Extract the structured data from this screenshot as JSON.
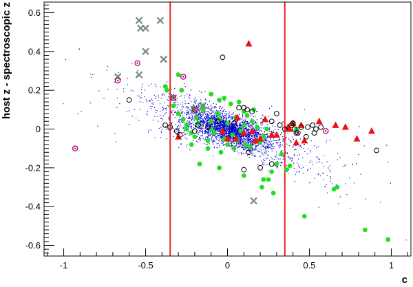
{
  "chart_data": {
    "type": "scatter",
    "title": "",
    "xlabel": "c",
    "ylabel": "host z - spectroscopic z",
    "xlim": [
      -1.12,
      1.12
    ],
    "ylim": [
      -0.655,
      0.655
    ],
    "xticks": [
      -1,
      -0.5,
      0,
      0.5,
      1
    ],
    "xtick_labels": [
      "-1",
      "-0.5",
      "0",
      "0.5",
      "1"
    ],
    "yticks": [
      -0.6,
      -0.4,
      -0.2,
      0,
      0.2,
      0.4,
      0.6
    ],
    "ytick_labels": [
      "-0.6",
      "-0.4",
      "-0.2",
      "0",
      "0.2",
      "0.4",
      "0.6"
    ],
    "grid": false,
    "vertical_lines": [
      -0.35,
      0.35
    ],
    "colors": {
      "background_dots": "#0000cc",
      "green": "#22dd22",
      "red": "#ee1111",
      "open_circle": "#000000",
      "cross": "#778877",
      "magenta_ring": "#aa0077",
      "cut_line": "#ee2222"
    },
    "series": [
      {
        "marker": "green-circle",
        "x": [
          -0.3,
          -0.28,
          -0.38,
          -0.33,
          -0.3,
          -0.27,
          -0.25,
          -0.22,
          -0.19,
          -0.15,
          -0.1,
          -0.05,
          0.0,
          0.05,
          0.1,
          0.15,
          -0.2,
          -0.12,
          -0.08,
          -0.02,
          0.03,
          0.08,
          0.12,
          0.18,
          0.22,
          -0.25,
          -0.18,
          -0.1,
          -0.06,
          0.0,
          0.06,
          0.14,
          0.2,
          -0.15,
          -0.05,
          0.02,
          0.1,
          0.16,
          -0.22,
          -0.12,
          -0.04,
          0.04,
          0.11,
          0.19,
          0.24,
          -0.1,
          -0.02,
          0.07,
          -0.21,
          -0.17,
          0.33,
          0.3,
          0.38,
          0.27,
          0.21,
          -0.05,
          0.1,
          -0.05,
          0.22,
          0.25,
          0.28,
          0.36,
          0.42,
          0.65,
          0.67,
          0.47,
          0.84,
          0.98,
          -0.37
        ],
        "y": [
          0.28,
          0.2,
          0.22,
          0.12,
          0.08,
          0.05,
          0.02,
          -0.02,
          0.06,
          0.1,
          0.0,
          0.05,
          0.03,
          0.06,
          0.02,
          0.04,
          -0.04,
          -0.06,
          -0.02,
          -0.05,
          -0.03,
          -0.01,
          0.07,
          0.01,
          -0.04,
          0.0,
          0.03,
          0.04,
          0.08,
          -0.08,
          -0.06,
          -0.09,
          -0.07,
          0.12,
          0.15,
          0.13,
          0.09,
          0.1,
          -0.08,
          -0.1,
          -0.12,
          -0.1,
          -0.08,
          -0.06,
          0.0,
          0.18,
          0.16,
          0.14,
          0.11,
          -0.18,
          -0.13,
          -0.18,
          -0.19,
          -0.22,
          -0.3,
          -0.2,
          -0.24,
          -0.2,
          -0.26,
          -0.26,
          -0.33,
          -0.21,
          0.0,
          -0.31,
          -0.3,
          -0.45,
          -0.52,
          -0.57,
          0.2
        ]
      },
      {
        "marker": "red-triangle",
        "x": [
          0.13,
          -0.3,
          0.06,
          0.0,
          0.05,
          0.1,
          0.15,
          0.2,
          0.23,
          0.27,
          0.3,
          0.37,
          0.4,
          0.45,
          0.47,
          0.42,
          0.38,
          0.56,
          0.66,
          0.72,
          0.79,
          0.88,
          -0.03,
          0.17
        ],
        "y": [
          0.44,
          -0.04,
          0.06,
          -0.05,
          -0.05,
          -0.02,
          -0.01,
          -0.05,
          0.05,
          -0.03,
          -0.03,
          0.01,
          0.03,
          0.02,
          -0.06,
          -0.07,
          0.0,
          0.04,
          0.02,
          0.01,
          -0.05,
          -0.01,
          -0.01,
          -0.06
        ]
      },
      {
        "marker": "open-circle",
        "x": [
          -0.03,
          0.1,
          0.15,
          -0.6,
          -0.38,
          -0.35,
          -0.31,
          -0.29,
          -0.2,
          -0.18,
          0.07,
          0.12,
          0.3,
          0.27,
          0.32,
          0.35,
          0.4,
          0.41,
          0.45,
          0.43,
          0.49,
          0.52,
          0.54,
          0.57,
          0.53,
          0.48,
          0.42,
          0.91,
          0.2,
          0.1,
          0.27,
          0.13,
          -0.12,
          -0.06,
          0.04,
          0.39
        ],
        "y": [
          0.37,
          0.11,
          0.09,
          0.15,
          0.02,
          0.01,
          -0.01,
          -0.03,
          -0.01,
          0.02,
          0.11,
          0.1,
          0.08,
          0.04,
          0.02,
          0.0,
          0.03,
          0.0,
          0.01,
          -0.02,
          0.01,
          0.02,
          0.0,
          0.01,
          -0.02,
          -0.04,
          -0.02,
          -0.11,
          -0.2,
          -0.21,
          -0.18,
          -0.12,
          0.01,
          0.04,
          0.03,
          0.02
        ]
      },
      {
        "marker": "cross",
        "x": [
          -0.54,
          -0.53,
          -0.5,
          -0.5,
          -0.41,
          -0.39,
          -0.39,
          -0.39,
          -0.67,
          -0.54,
          -0.33,
          -0.15,
          0.16,
          -0.2
        ],
        "y": [
          0.56,
          0.52,
          0.52,
          0.4,
          0.56,
          0.36,
          0.36,
          0.36,
          0.27,
          0.28,
          0.16,
          0.12,
          -0.37,
          0.1
        ]
      },
      {
        "marker": "magenta-ring",
        "x": [
          -0.93,
          -0.67,
          -0.55,
          -0.27,
          0.6,
          -0.2,
          -0.33
        ],
        "y": [
          -0.1,
          0.25,
          0.34,
          0.27,
          -0.01,
          0.1,
          0.16
        ]
      }
    ]
  }
}
